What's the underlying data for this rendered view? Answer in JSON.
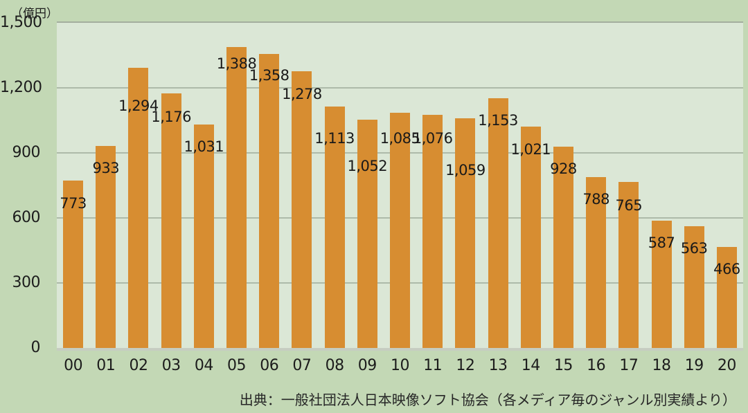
{
  "chart_data": {
    "type": "bar",
    "title": "",
    "unit_label": "（億円）",
    "categories": [
      "00",
      "01",
      "02",
      "03",
      "04",
      "05",
      "06",
      "07",
      "08",
      "09",
      "10",
      "11",
      "12",
      "13",
      "14",
      "15",
      "16",
      "17",
      "18",
      "19",
      "20"
    ],
    "values": [
      773,
      933,
      1294,
      1176,
      1031,
      1388,
      1358,
      1278,
      1113,
      1052,
      1085,
      1076,
      1059,
      1153,
      1021,
      928,
      788,
      765,
      587,
      563,
      466
    ],
    "value_labels": [
      "773",
      "933",
      "1,294",
      "1,176",
      "1,031",
      "1,388",
      "1,358",
      "1,278",
      "1,113",
      "1,052",
      "1,085",
      "1,076",
      "1,059",
      "1,153",
      "1,021",
      "928",
      "788",
      "765",
      "587",
      "563",
      "466"
    ],
    "xlabel": "",
    "ylabel": "（億円）",
    "ylim": [
      0,
      1500
    ],
    "yticks": [
      0,
      300,
      600,
      900,
      1200,
      1500
    ],
    "ytick_labels": [
      "0",
      "300",
      "600",
      "900",
      "1,200",
      "1,500"
    ],
    "grid": true,
    "legend_position": "none",
    "bar_color": "#d78d31",
    "plot_bg_color": "#dbe7d6",
    "page_bg_color": "#c3d8b5",
    "label_dy": [
      33,
      32,
      55,
      34,
      32,
      24,
      32,
      33,
      46,
      67,
      37,
      34,
      75,
      32,
      33,
      32,
      32,
      34,
      32,
      32,
      32
    ]
  },
  "source_note": "出典：一般社団法人日本映像ソフト協会（各メディア毎のジャンル別実績より）"
}
